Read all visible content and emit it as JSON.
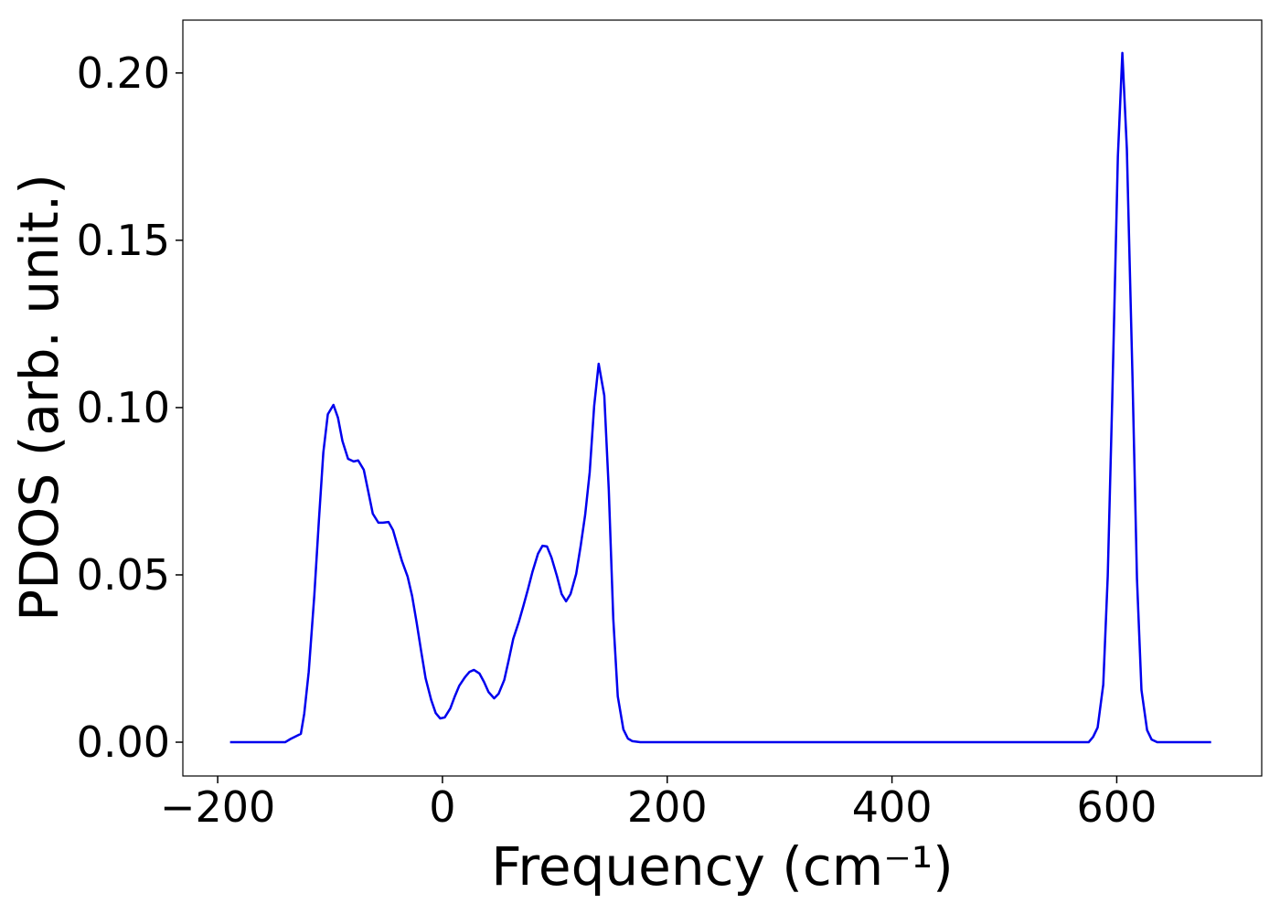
{
  "chart_data": {
    "type": "line",
    "xlabel": "Frequency (cm⁻¹)",
    "ylabel": "PDOS (arb. unit.)",
    "xlim": [
      -231,
      729
    ],
    "ylim": [
      -0.0101,
      0.2158
    ],
    "xticks": [
      {
        "value": -200,
        "label": "−200"
      },
      0,
      200,
      400,
      600
    ],
    "yticks": [
      {
        "value": 0,
        "label": "0.00"
      },
      {
        "value": 0.05,
        "label": "0.05"
      },
      {
        "value": 0.1,
        "label": "0.10"
      },
      {
        "value": 0.15,
        "label": "0.15"
      },
      {
        "value": 0.2,
        "label": "0.20"
      }
    ],
    "series": [
      {
        "color": "#0000ee",
        "x": [
          -189,
          -140,
          -135,
          -126,
          -123,
          -119,
          -114,
          -110,
          -106,
          -102,
          -97,
          -93,
          -89,
          -84,
          -79,
          -75,
          -70,
          -66,
          -62,
          -57,
          -53,
          -48,
          -44,
          -40,
          -36,
          -31,
          -27,
          -23,
          -19,
          -15,
          -10,
          -6,
          -2,
          2,
          7,
          11,
          15,
          20,
          24,
          28,
          33,
          37,
          41,
          46,
          50,
          55,
          59,
          63,
          68,
          72,
          76,
          80,
          85,
          89,
          93,
          97,
          102,
          106,
          110,
          114,
          119,
          123,
          127,
          131,
          135,
          139,
          144,
          148,
          152,
          156,
          161,
          165,
          169,
          176,
          575,
          579,
          583,
          588,
          592,
          596,
          601,
          605,
          609,
          614,
          618,
          622,
          627,
          631,
          636,
          684
        ],
        "values": [
          0,
          0,
          0.001,
          0.0025,
          0.0085,
          0.021,
          0.044,
          0.066,
          0.0866,
          0.098,
          0.1008,
          0.097,
          0.09,
          0.0847,
          0.0839,
          0.0842,
          0.0814,
          0.0749,
          0.0683,
          0.0656,
          0.0656,
          0.0658,
          0.0634,
          0.0587,
          0.0541,
          0.0495,
          0.0437,
          0.0358,
          0.0273,
          0.0191,
          0.0126,
          0.0087,
          0.0071,
          0.0074,
          0.0101,
          0.0137,
          0.0169,
          0.0194,
          0.021,
          0.0216,
          0.0205,
          0.018,
          0.015,
          0.0131,
          0.0145,
          0.0186,
          0.0246,
          0.0309,
          0.036,
          0.0407,
          0.0456,
          0.0508,
          0.0563,
          0.0587,
          0.0585,
          0.0552,
          0.0495,
          0.0443,
          0.0421,
          0.0443,
          0.0503,
          0.0587,
          0.068,
          0.0806,
          0.1005,
          0.1131,
          0.1036,
          0.0754,
          0.0369,
          0.0137,
          0.0038,
          0.0011,
          0.0003,
          0,
          0,
          0.0016,
          0.0044,
          0.0172,
          0.0497,
          0.1025,
          0.175,
          0.206,
          0.1773,
          0.1093,
          0.0489,
          0.0156,
          0.0036,
          0.0008,
          0,
          0
        ]
      }
    ]
  }
}
